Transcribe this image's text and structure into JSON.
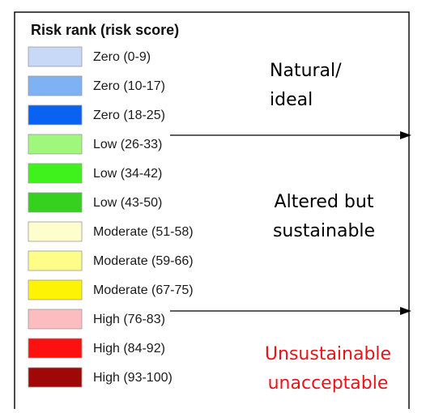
{
  "legend": {
    "title": "Risk rank (risk score)",
    "items": [
      {
        "label": "Zero (0-9)",
        "color": "#c7d9f7"
      },
      {
        "label": "Zero (10-17)",
        "color": "#7fb1f5"
      },
      {
        "label": "Zero (18-25)",
        "color": "#0a62f2"
      },
      {
        "label": "Low (26-33)",
        "color": "#9ff77c"
      },
      {
        "label": "Low (34-42)",
        "color": "#40f21c"
      },
      {
        "label": "Low (43-50)",
        "color": "#36d11f"
      },
      {
        "label": "Moderate (51-58)",
        "color": "#fdfdcd"
      },
      {
        "label": "Moderate (59-66)",
        "color": "#fdfd88"
      },
      {
        "label": "Moderate (67-75)",
        "color": "#fcf305"
      },
      {
        "label": "High (76-83)",
        "color": "#fdbdc0"
      },
      {
        "label": "High (84-92)",
        "color": "#fc1010"
      },
      {
        "label": "High (93-100)",
        "color": "#a00808"
      }
    ]
  },
  "annotations": [
    {
      "lines": [
        "Natural/",
        "ideal"
      ],
      "color": "#000000"
    },
    {
      "lines": [
        "Altered but",
        "sustainable"
      ],
      "color": "#000000"
    },
    {
      "lines": [
        "Unsustainable",
        "unacceptable"
      ],
      "color": "#e8141a"
    }
  ]
}
